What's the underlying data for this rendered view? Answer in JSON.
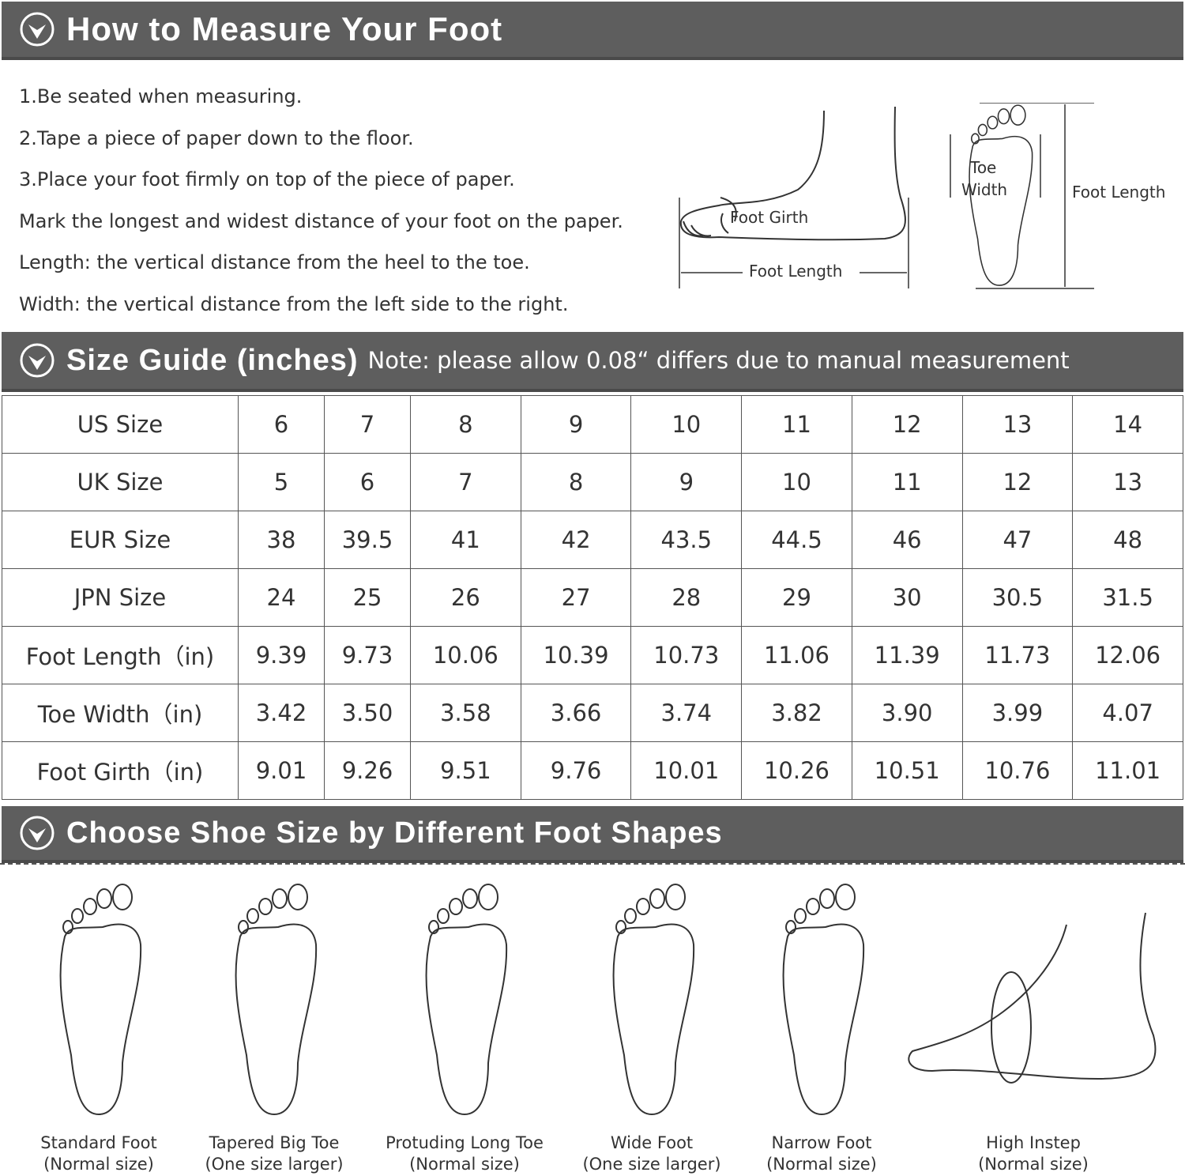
{
  "section1": {
    "title": "How to Measure Your Foot",
    "steps": [
      "1.Be seated when measuring.",
      "2.Tape a piece of paper down to the floor.",
      "3.Place your foot firmly on top of the piece of paper.",
      "Mark the longest and widest distance of your foot on the paper.",
      "Length: the vertical distance from the heel to the toe.",
      "Width: the vertical distance from the left side to the right."
    ],
    "diagram_labels": {
      "foot_girth": "Foot Girth",
      "foot_length_side": "Foot Length",
      "toe_width_1": "Toe",
      "toe_width_2": "Width",
      "foot_length_top": "Foot Length"
    }
  },
  "section2": {
    "title": "Size Guide (inches)",
    "note": "Note: please allow 0.08“ differs due to manual measurement",
    "rows": [
      {
        "label": "US Size",
        "values": [
          "6",
          "7",
          "8",
          "9",
          "10",
          "11",
          "12",
          "13",
          "14"
        ]
      },
      {
        "label": "UK Size",
        "values": [
          "5",
          "6",
          "7",
          "8",
          "9",
          "10",
          "11",
          "12",
          "13"
        ]
      },
      {
        "label": "EUR Size",
        "values": [
          "38",
          "39.5",
          "41",
          "42",
          "43.5",
          "44.5",
          "46",
          "47",
          "48"
        ]
      },
      {
        "label": "JPN Size",
        "values": [
          "24",
          "25",
          "26",
          "27",
          "28",
          "29",
          "30",
          "30.5",
          "31.5"
        ]
      },
      {
        "label": "Foot Length（in)",
        "values": [
          "9.39",
          "9.73",
          "10.06",
          "10.39",
          "10.73",
          "11.06",
          "11.39",
          "11.73",
          "12.06"
        ]
      },
      {
        "label": "Toe Width（in)",
        "values": [
          "3.42",
          "3.50",
          "3.58",
          "3.66",
          "3.74",
          "3.82",
          "3.90",
          "3.99",
          "4.07"
        ]
      },
      {
        "label": "Foot Girth（in)",
        "values": [
          "9.01",
          "9.26",
          "9.51",
          "9.76",
          "10.01",
          "10.26",
          "10.51",
          "10.76",
          "11.01"
        ]
      }
    ]
  },
  "section3": {
    "title": "Choose Shoe Size by Different Foot Shapes",
    "shapes": [
      {
        "name": "Standard Foot",
        "fit": "(Normal size)"
      },
      {
        "name": "Tapered Big Toe",
        "fit": "(One size larger)"
      },
      {
        "name": "Protuding Long Toe",
        "fit": "(Normal size)"
      },
      {
        "name": "Wide Foot",
        "fit": "(One size larger)"
      },
      {
        "name": "Narrow Foot",
        "fit": "(Normal size)"
      },
      {
        "name": "High Instep",
        "fit": "(Normal size)"
      }
    ]
  },
  "colors": {
    "header_bg": "#5e5e5e",
    "header_text": "#ffffff",
    "line": "#555555"
  }
}
